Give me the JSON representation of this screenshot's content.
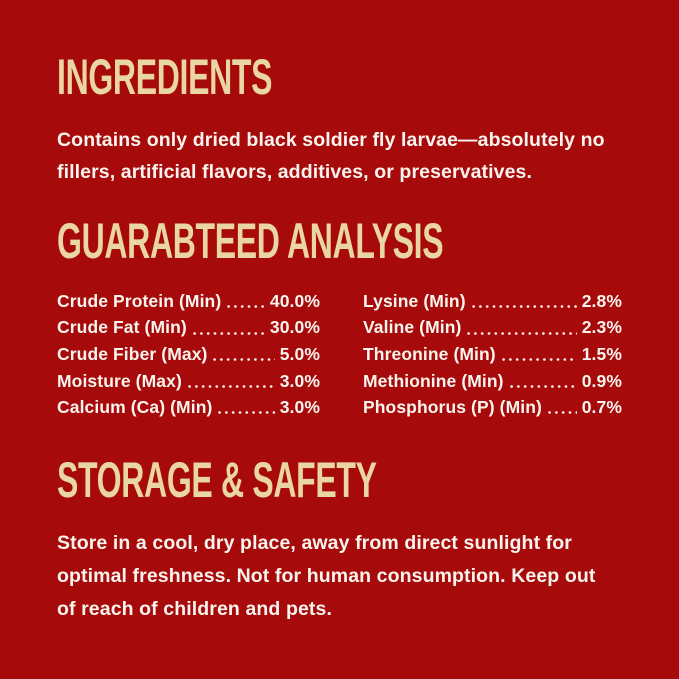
{
  "page": {
    "background_color": "#a70a0b",
    "heading_color": "#e9d6a2",
    "text_color": "#f9f4ed"
  },
  "sections": {
    "ingredients": {
      "title": "INGREDIENTS",
      "body": "Contains only dried black soldier fly larvae—absolutely no\nfillers, artificial flavors, additives, or preservatives."
    },
    "analysis": {
      "title": "GUARABTEED ANALYSIS",
      "left_column": [
        {
          "label": "Crude Protein (Min)",
          "value": "40.0%"
        },
        {
          "label": "Crude Fat (Min)",
          "value": "30.0%"
        },
        {
          "label": "Crude Fiber (Max)",
          "value": "5.0%"
        },
        {
          "label": "Moisture (Max)",
          "value": "3.0%"
        },
        {
          "label": "Calcium (Ca) (Min)",
          "value": "3.0%"
        }
      ],
      "right_column": [
        {
          "label": "Lysine (Min)",
          "value": "2.8%"
        },
        {
          "label": "Valine (Min)",
          "value": "2.3%"
        },
        {
          "label": "Threonine (Min)",
          "value": "1.5%"
        },
        {
          "label": "Methionine (Min)",
          "value": "0.9%"
        },
        {
          "label": "Phosphorus (P) (Min)",
          "value": "0.7%"
        }
      ]
    },
    "storage": {
      "title": "STORAGE & SAFETY",
      "body": "Store in a cool, dry place, away from direct sunlight for\noptimal freshness. Not for human consumption. Keep out\nof reach of children and pets."
    }
  }
}
